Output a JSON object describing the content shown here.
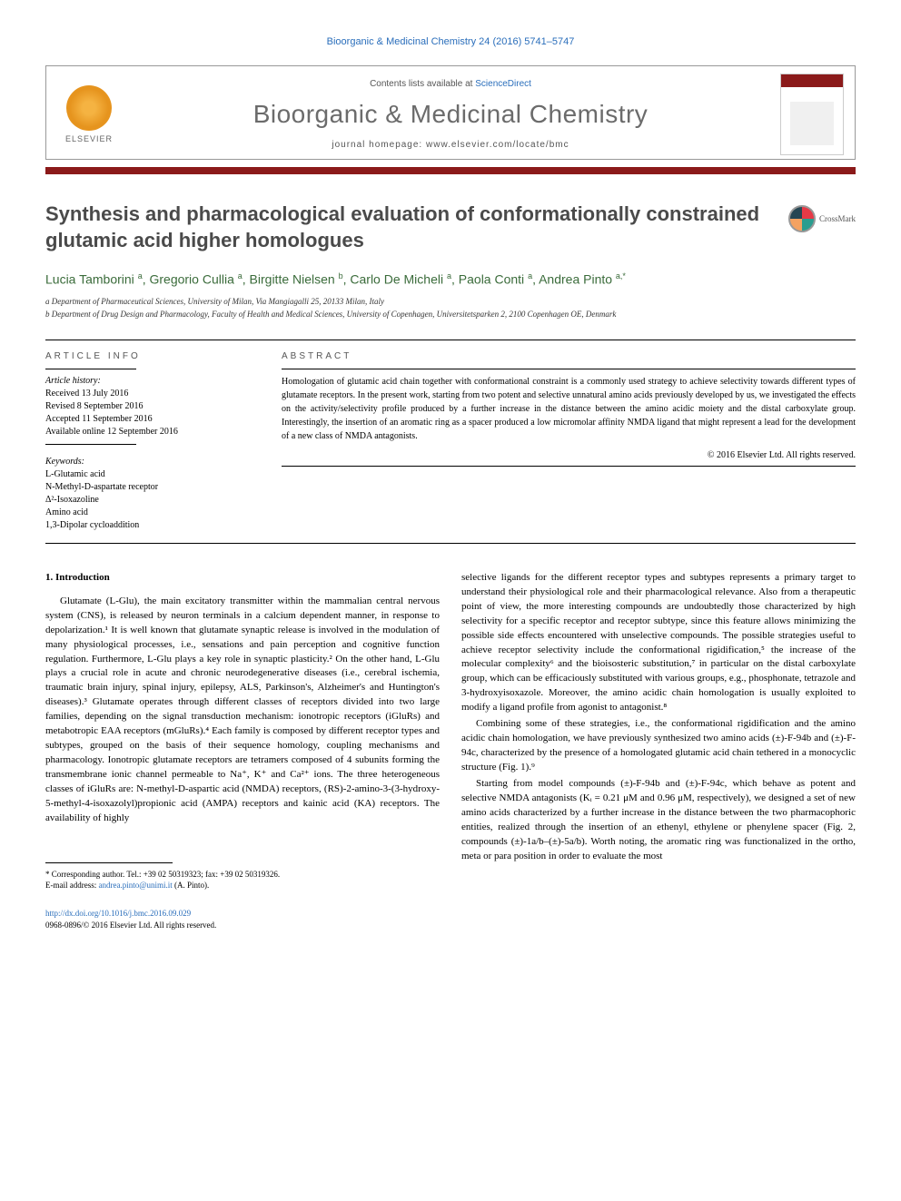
{
  "running_head": "Bioorganic & Medicinal Chemistry 24 (2016) 5741–5747",
  "masthead": {
    "publisher": "ELSEVIER",
    "contents_prefix": "Contents lists available at ",
    "contents_link": "ScienceDirect",
    "journal_title": "Bioorganic & Medicinal Chemistry",
    "homepage_prefix": "journal homepage: ",
    "homepage_url": "www.elsevier.com/locate/bmc"
  },
  "article": {
    "title": "Synthesis and pharmacological evaluation of conformationally constrained glutamic acid higher homologues",
    "crossmark_label": "CrossMark",
    "authors_html": "Lucia Tamborini <sup>a</sup>, Gregorio Cullia <sup>a</sup>, Birgitte Nielsen <sup>b</sup>, Carlo De Micheli <sup>a</sup>, Paola Conti <sup>a</sup>, Andrea Pinto <sup>a,*</sup>",
    "affiliations": [
      "a Department of Pharmaceutical Sciences, University of Milan, Via Mangiagalli 25, 20133 Milan, Italy",
      "b Department of Drug Design and Pharmacology, Faculty of Health and Medical Sciences, University of Copenhagen, Universitetsparken 2, 2100 Copenhagen OE, Denmark"
    ]
  },
  "info": {
    "heading": "ARTICLE INFO",
    "history_label": "Article history:",
    "history": [
      "Received 13 July 2016",
      "Revised 8 September 2016",
      "Accepted 11 September 2016",
      "Available online 12 September 2016"
    ],
    "keywords_label": "Keywords:",
    "keywords": [
      "L-Glutamic acid",
      "N-Methyl-D-aspartate receptor",
      "Δ²-Isoxazoline",
      "Amino acid",
      "1,3-Dipolar cycloaddition"
    ]
  },
  "abstract": {
    "heading": "ABSTRACT",
    "text": "Homologation of glutamic acid chain together with conformational constraint is a commonly used strategy to achieve selectivity towards different types of glutamate receptors. In the present work, starting from two potent and selective unnatural amino acids previously developed by us, we investigated the effects on the activity/selectivity profile produced by a further increase in the distance between the amino acidic moiety and the distal carboxylate group. Interestingly, the insertion of an aromatic ring as a spacer produced a low micromolar affinity NMDA ligand that might represent a lead for the development of a new class of NMDA antagonists.",
    "copyright": "© 2016 Elsevier Ltd. All rights reserved."
  },
  "body": {
    "section1_heading": "1. Introduction",
    "col1_p1": "Glutamate (L-Glu), the main excitatory transmitter within the mammalian central nervous system (CNS), is released by neuron terminals in a calcium dependent manner, in response to depolarization.¹ It is well known that glutamate synaptic release is involved in the modulation of many physiological processes, i.e., sensations and pain perception and cognitive function regulation. Furthermore, L-Glu plays a key role in synaptic plasticity.² On the other hand, L-Glu plays a crucial role in acute and chronic neurodegenerative diseases (i.e., cerebral ischemia, traumatic brain injury, spinal injury, epilepsy, ALS, Parkinson's, Alzheimer's and Huntington's diseases).³ Glutamate operates through different classes of receptors divided into two large families, depending on the signal transduction mechanism: ionotropic receptors (iGluRs) and metabotropic EAA receptors (mGluRs).⁴ Each family is composed by different receptor types and subtypes, grouped on the basis of their sequence homology, coupling mechanisms and pharmacology. Ionotropic glutamate receptors are tetramers composed of 4 subunits forming the transmembrane ionic channel permeable to Na⁺, K⁺ and Ca²⁺ ions. The three heterogeneous classes of iGluRs are: N-methyl-D-aspartic acid (NMDA) receptors, (RS)-2-amino-3-(3-hydroxy-5-methyl-4-isoxazolyl)propionic acid (AMPA) receptors and kainic acid (KA) receptors. The availability of highly",
    "col2_p1": "selective ligands for the different receptor types and subtypes represents a primary target to understand their physiological role and their pharmacological relevance. Also from a therapeutic point of view, the more interesting compounds are undoubtedly those characterized by high selectivity for a specific receptor and receptor subtype, since this feature allows minimizing the possible side effects encountered with unselective compounds. The possible strategies useful to achieve receptor selectivity include the conformational rigidification,⁵ the increase of the molecular complexity⁶ and the bioisosteric substitution,⁷ in particular on the distal carboxylate group, which can be efficaciously substituted with various groups, e.g., phosphonate, tetrazole and 3-hydroxyisoxazole. Moreover, the amino acidic chain homologation is usually exploited to modify a ligand profile from agonist to antagonist.⁸",
    "col2_p2": "Combining some of these strategies, i.e., the conformational rigidification and the amino acidic chain homologation, we have previously synthesized two amino acids (±)-F-94b and (±)-F-94c, characterized by the presence of a homologated glutamic acid chain tethered in a monocyclic structure (Fig. 1).⁹",
    "col2_p3": "Starting from model compounds (±)-F-94b and (±)-F-94c, which behave as potent and selective NMDA antagonists (Kᵢ = 0.21 μM and 0.96 μM, respectively), we designed a set of new amino acids characterized by a further increase in the distance between the two pharmacophoric entities, realized through the insertion of an ethenyl, ethylene or phenylene spacer (Fig. 2, compounds (±)-1a/b–(±)-5a/b). Worth noting, the aromatic ring was functionalized in the ortho, meta or para position in order to evaluate the most"
  },
  "footnotes": {
    "corr": "* Corresponding author. Tel.: +39 02 50319323; fax: +39 02 50319326.",
    "email_label": "E-mail address: ",
    "email": "andrea.pinto@unimi.it",
    "email_suffix": " (A. Pinto)."
  },
  "footer": {
    "doi": "http://dx.doi.org/10.1016/j.bmc.2016.09.029",
    "issn_line": "0968-0896/© 2016 Elsevier Ltd. All rights reserved."
  },
  "colors": {
    "link": "#2a6ebb",
    "red_bar": "#8b1a1a",
    "author_green": "#3a6b3a",
    "title_grey": "#4a4a4a"
  }
}
